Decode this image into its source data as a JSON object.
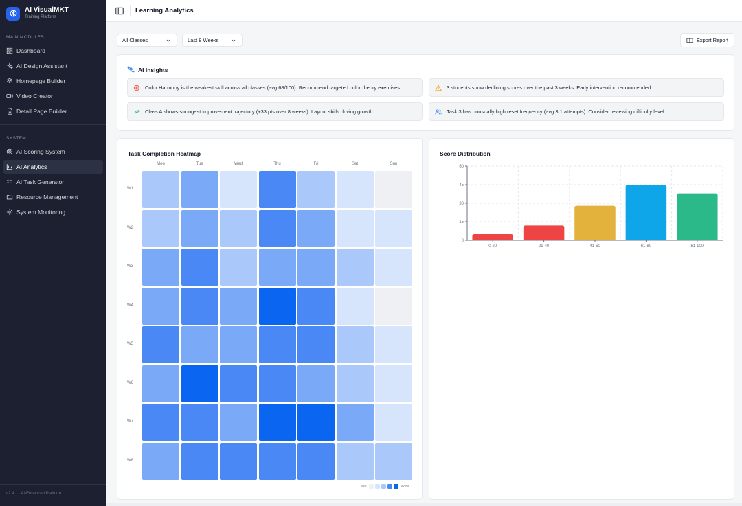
{
  "sidebar": {
    "brand_name": "AI VisualMKT",
    "brand_sub": "Training Platform",
    "main_section": "MAIN MODULES",
    "main_items": [
      {
        "label": "Dashboard",
        "icon": "grid-icon"
      },
      {
        "label": "AI Design Assistant",
        "icon": "sparkles-icon"
      },
      {
        "label": "Homepage Builder",
        "icon": "layers-icon"
      },
      {
        "label": "Video Creator",
        "icon": "video-icon"
      },
      {
        "label": "Detail Page Builder",
        "icon": "file-icon"
      }
    ],
    "system_section": "SYSTEM",
    "system_items": [
      {
        "label": "AI Scoring System",
        "icon": "target-icon",
        "active": false
      },
      {
        "label": "AI Analytics",
        "icon": "bar-chart-icon",
        "active": true
      },
      {
        "label": "AI Task Generator",
        "icon": "list-checks-icon",
        "active": false
      },
      {
        "label": "Resource Management",
        "icon": "folder-icon",
        "active": false
      },
      {
        "label": "System Monitoring",
        "icon": "gear-icon",
        "active": false
      }
    ],
    "footer": "v2.4.1 · AI-Enhanced Platform"
  },
  "header": {
    "title": "Learning Analytics"
  },
  "filters": {
    "class_select": "All Classes",
    "period_select": "Last 8 Weeks",
    "export_label": "Export Report"
  },
  "insights": {
    "title": "AI Insights",
    "items": [
      {
        "text": "Color Harmony is the weakest skill across all classes (avg 68/100). Recommend targeted color theory exercises.",
        "icon": "target-icon",
        "color": "#ef4444"
      },
      {
        "text": "3 students show declining scores over the past 3 weeks. Early intervention recommended.",
        "icon": "warning-icon",
        "color": "#f59e0b"
      },
      {
        "text": "Class A shows strongest improvement trajectory (+33 pts over 8 weeks). Layout skills driving growth.",
        "icon": "trending-up-icon",
        "color": "#10b981"
      },
      {
        "text": "Task 3 has unusually high reset frequency (avg 3.1 attempts). Consider reviewing difficulty level.",
        "icon": "users-icon",
        "color": "#3b82f6"
      }
    ]
  },
  "heatmap": {
    "title": "Task Completion Heatmap",
    "days": [
      "Mon",
      "Tue",
      "Wed",
      "Thu",
      "Fri",
      "Sat",
      "Sun"
    ],
    "weeks": [
      "W1",
      "W2",
      "W3",
      "W4",
      "W5",
      "W6",
      "W7",
      "W8"
    ],
    "levels": [
      [
        2,
        3,
        1,
        4,
        2,
        1,
        0
      ],
      [
        2,
        3,
        2,
        4,
        3,
        1,
        1
      ],
      [
        3,
        4,
        2,
        3,
        3,
        2,
        1
      ],
      [
        3,
        4,
        3,
        5,
        4,
        1,
        0
      ],
      [
        4,
        3,
        3,
        4,
        4,
        2,
        1
      ],
      [
        3,
        5,
        4,
        4,
        3,
        2,
        1
      ],
      [
        4,
        4,
        3,
        5,
        5,
        3,
        1
      ],
      [
        3,
        4,
        4,
        4,
        4,
        2,
        2
      ]
    ],
    "level_colors": [
      "#eef0f4",
      "#d6e4fc",
      "#abc8fa",
      "#7aa9f7",
      "#4a89f5",
      "#0a66f0"
    ],
    "legend_less": "Less",
    "legend_more": "More"
  },
  "chart_data": {
    "type": "bar",
    "title": "Score Distribution",
    "categories": [
      "0-20",
      "21-40",
      "41-60",
      "61-80",
      "81-100"
    ],
    "values": [
      5,
      12,
      28,
      45,
      38
    ],
    "colors": [
      "#ef4444",
      "#ef4444",
      "#e3b23c",
      "#0ea5e9",
      "#2cb98a"
    ],
    "ylim": [
      0,
      60
    ],
    "yticks": [
      0,
      15,
      30,
      45,
      60
    ],
    "grid": true
  }
}
